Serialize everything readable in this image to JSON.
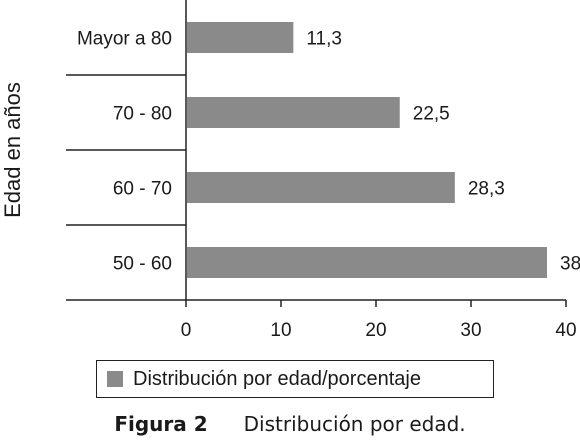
{
  "chart_data": {
    "type": "bar",
    "orientation": "horizontal",
    "categories": [
      "Mayor a 80",
      "70 - 80",
      "60 - 70",
      "50 - 60"
    ],
    "series": [
      {
        "name": "Distribución por edad/porcentaje",
        "values": [
          11.3,
          22.5,
          28.3,
          38
        ]
      }
    ],
    "data_labels": [
      "11,3",
      "22,5",
      "28,3",
      "38"
    ],
    "xlim": [
      0,
      40
    ],
    "xticks": [
      "0",
      "10",
      "20",
      "30",
      "40"
    ],
    "ylabel": "Edad en años",
    "bar_color": "#8a8a8a",
    "grid": false,
    "legend_position": "bottom"
  },
  "legend": {
    "label": "Distribución por edad/porcentaje"
  },
  "caption": {
    "label": "Figura 2",
    "text": "Distribución por edad."
  }
}
